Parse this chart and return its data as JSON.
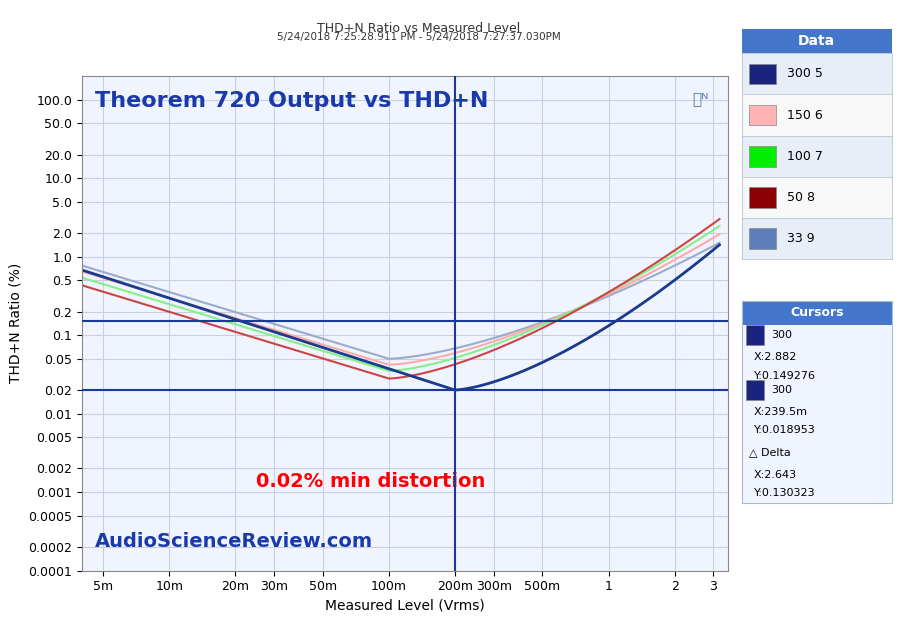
{
  "title_top": "THD+N Ratio vs Measured Level",
  "title_sub": "5/24/2018 7:25:28.911 PM - 5/24/2018 7:27:37.030PM",
  "main_title": "Theorem 720 Output vs THD+N",
  "annotation": "0.02% min distortion",
  "watermark": "AudioScienceReview.com",
  "xlabel": "Measured Level (Vrms)",
  "ylabel": "THD+N Ratio (%)",
  "xlim_log": [
    -2.301,
    0.477
  ],
  "ylim_log": [
    -4.0,
    2.0
  ],
  "x_ticks": [
    0.005,
    0.01,
    0.02,
    0.03,
    0.05,
    0.1,
    0.2,
    0.3,
    0.5,
    1.0,
    2.0,
    3.0
  ],
  "x_tick_labels": [
    "5m",
    "10m",
    "20m",
    "30m",
    "50m",
    "100m",
    "200m",
    "300m",
    "500m",
    "1",
    "2",
    "3"
  ],
  "y_ticks": [
    0.0001,
    0.0002,
    0.0005,
    0.001,
    0.002,
    0.005,
    0.01,
    0.02,
    0.05,
    0.1,
    0.2,
    0.5,
    1.0,
    2.0,
    5.0,
    10.0,
    20.0,
    50.0,
    100.0
  ],
  "cursor_x": 0.2,
  "cursor_y1": 0.02,
  "cursor_y2": 0.149276,
  "cursor2_x": 2.882,
  "legend_entries": [
    "300 5",
    "150 6",
    "100 7",
    "50 8",
    "33 9"
  ],
  "legend_colors": [
    "#1a237e",
    "#ffb3b3",
    "#66ff66",
    "#8b0000",
    "#5c7cba"
  ],
  "line_colors": [
    "#8899bb",
    "#ffaaaa",
    "#99ee99",
    "#cc5555",
    "#1a3a8a"
  ],
  "bg_color": "#f0f4ff",
  "grid_color": "#c8d0e0",
  "legend_header_bg": "#4477cc",
  "cursors_header_bg": "#4477cc"
}
